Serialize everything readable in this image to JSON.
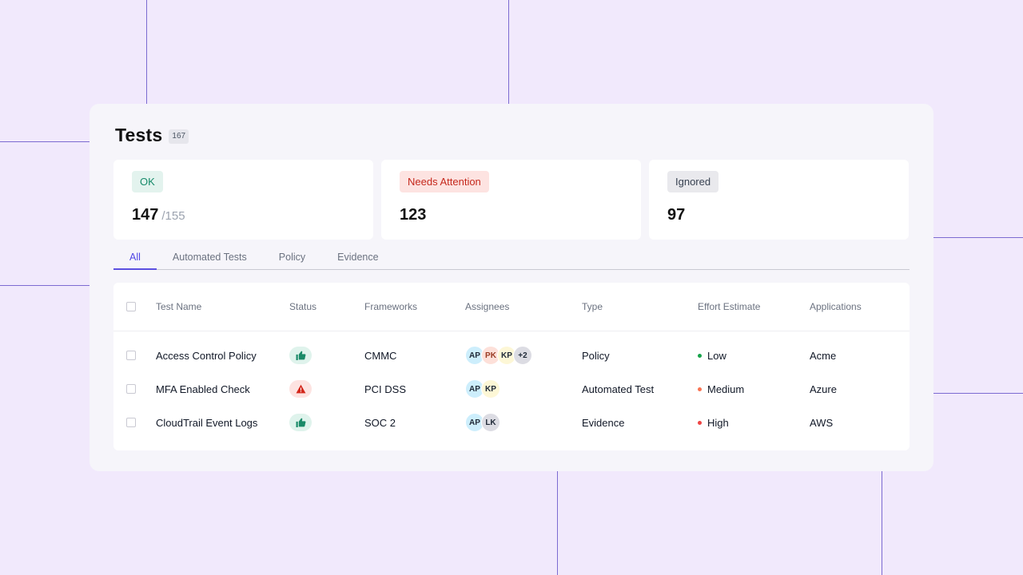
{
  "page": {
    "title": "Tests",
    "total_count": "167"
  },
  "summary": [
    {
      "label": "OK",
      "value": "147",
      "sub": "/155",
      "color": "#178a6a"
    },
    {
      "label": "Needs Attention",
      "value": "123",
      "color": "#c5281c"
    },
    {
      "label": "Ignored",
      "value": "97",
      "color": "#374151"
    }
  ],
  "tabs": [
    {
      "label": "All",
      "active": true
    },
    {
      "label": "Automated Tests"
    },
    {
      "label": "Policy"
    },
    {
      "label": "Evidence"
    }
  ],
  "table": {
    "columns": [
      "Test Name",
      "Status",
      "Frameworks",
      "Assignees",
      "Type",
      "Effort Estimate",
      "Applications"
    ],
    "rows": [
      {
        "name": "Access Control Policy",
        "status": "thumbs-up-icon",
        "framework": "CMMC",
        "assignees": [
          "AP",
          "PK",
          "KP",
          "+2"
        ],
        "type": "Policy",
        "effort": "Low",
        "effort_color": "#16a34a",
        "application": "Acme"
      },
      {
        "name": "MFA Enabled Check",
        "status": "warning-icon",
        "framework": "PCI DSS",
        "assignees": [
          "AP",
          "KP"
        ],
        "type": "Automated Test",
        "effort": "Medium",
        "effort_color": "#f97352",
        "application": "Azure"
      },
      {
        "name": "CloudTrail Event Logs",
        "status": "thumbs-up-icon",
        "framework": "SOC 2",
        "assignees": [
          "AP",
          "LK"
        ],
        "type": "Evidence",
        "effort": "High",
        "effort_color": "#ef4444",
        "application": "AWS"
      }
    ]
  },
  "colors": {
    "background": "#f1e9fc",
    "accent": "#5b4fe0",
    "grid_lines": "#7c6bd1"
  }
}
